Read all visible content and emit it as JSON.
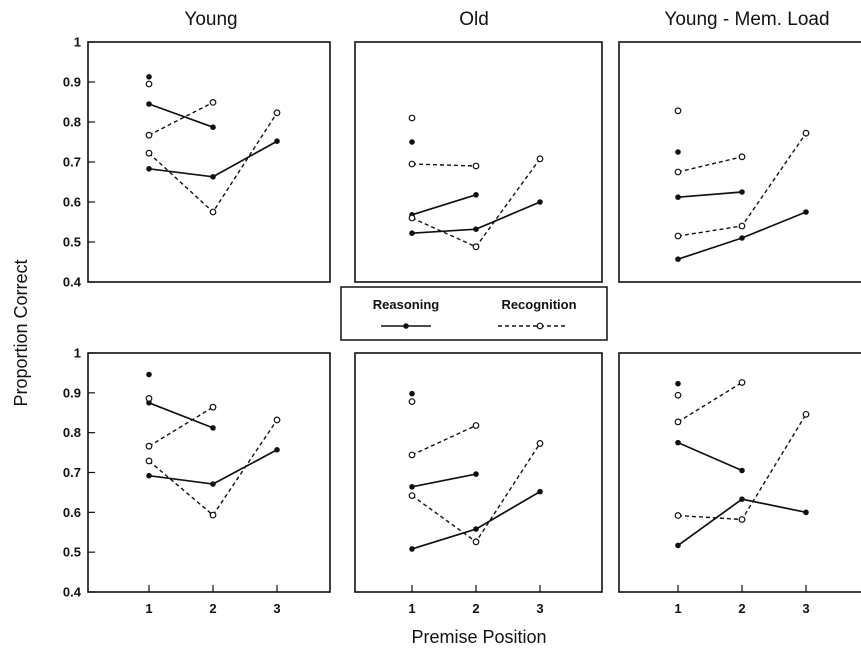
{
  "figure": {
    "ylabel": "Proportion Correct",
    "xlabel": "Premise Position",
    "column_titles": [
      "Young",
      "Old",
      "Young - Mem. Load"
    ],
    "legend": {
      "reasoning": "Reasoning",
      "recognition": "Recognition"
    }
  },
  "chart_data": [
    {
      "type": "line",
      "panel": "top-left",
      "title": "Young",
      "ylabel": "Proportion Correct",
      "xlabel": "Premise Position",
      "ylim": [
        0.4,
        1
      ],
      "yticks": [
        "0.4",
        "0.5",
        "0.6",
        "0.7",
        "0.8",
        "0.9",
        "1"
      ],
      "xticks": [],
      "series": [
        {
          "name": "Reasoning",
          "style": "solid",
          "marker": "filled",
          "points": [
            [
              1,
              0.845
            ],
            [
              2,
              0.787
            ]
          ]
        },
        {
          "name": "Reasoning",
          "style": "solid",
          "marker": "filled",
          "points": [
            [
              1,
              0.683
            ],
            [
              2,
              0.663
            ],
            [
              3,
              0.752
            ]
          ]
        },
        {
          "name": "Recognition",
          "style": "dashed",
          "marker": "open",
          "points": [
            [
              1,
              0.767
            ],
            [
              2,
              0.849
            ]
          ]
        },
        {
          "name": "Recognition",
          "style": "dashed",
          "marker": "open",
          "points": [
            [
              1,
              0.722
            ],
            [
              2,
              0.575
            ],
            [
              3,
              0.823
            ]
          ]
        },
        {
          "name": "Reasoning",
          "style": "none",
          "marker": "filled",
          "points": [
            [
              1,
              0.913
            ]
          ]
        },
        {
          "name": "Recognition",
          "style": "none",
          "marker": "open",
          "points": [
            [
              1,
              0.895
            ]
          ]
        }
      ]
    },
    {
      "type": "line",
      "panel": "top-middle",
      "title": "Old",
      "ylim": [
        0.4,
        1
      ],
      "yticks": [],
      "xticks": [],
      "series": [
        {
          "name": "Reasoning",
          "style": "solid",
          "marker": "filled",
          "points": [
            [
              1,
              0.568
            ],
            [
              2,
              0.618
            ]
          ]
        },
        {
          "name": "Reasoning",
          "style": "solid",
          "marker": "filled",
          "points": [
            [
              1,
              0.522
            ],
            [
              2,
              0.532
            ],
            [
              3,
              0.6
            ]
          ]
        },
        {
          "name": "Recognition",
          "style": "dashed",
          "marker": "open",
          "points": [
            [
              1,
              0.695
            ],
            [
              2,
              0.69
            ]
          ]
        },
        {
          "name": "Recognition",
          "style": "dashed",
          "marker": "open",
          "points": [
            [
              1,
              0.56
            ],
            [
              2,
              0.488
            ],
            [
              3,
              0.708
            ]
          ]
        },
        {
          "name": "Reasoning",
          "style": "none",
          "marker": "filled",
          "points": [
            [
              1,
              0.75
            ]
          ]
        },
        {
          "name": "Recognition",
          "style": "none",
          "marker": "open",
          "points": [
            [
              1,
              0.81
            ]
          ]
        }
      ]
    },
    {
      "type": "line",
      "panel": "top-right",
      "title": "Young - Mem. Load",
      "ylim": [
        0.4,
        1
      ],
      "yticks": [],
      "xticks": [],
      "series": [
        {
          "name": "Reasoning",
          "style": "solid",
          "marker": "filled",
          "points": [
            [
              1,
              0.612
            ],
            [
              2,
              0.625
            ]
          ]
        },
        {
          "name": "Reasoning",
          "style": "solid",
          "marker": "filled",
          "points": [
            [
              1,
              0.457
            ],
            [
              2,
              0.51
            ],
            [
              3,
              0.575
            ]
          ]
        },
        {
          "name": "Recognition",
          "style": "dashed",
          "marker": "open",
          "points": [
            [
              1,
              0.675
            ],
            [
              2,
              0.713
            ]
          ]
        },
        {
          "name": "Recognition",
          "style": "dashed",
          "marker": "open",
          "points": [
            [
              1,
              0.515
            ],
            [
              2,
              0.54
            ],
            [
              3,
              0.772
            ]
          ]
        },
        {
          "name": "Reasoning",
          "style": "none",
          "marker": "filled",
          "points": [
            [
              1,
              0.725
            ]
          ]
        },
        {
          "name": "Recognition",
          "style": "none",
          "marker": "open",
          "points": [
            [
              1,
              0.828
            ]
          ]
        }
      ]
    },
    {
      "type": "line",
      "panel": "bottom-left",
      "ylim": [
        0.4,
        1
      ],
      "yticks": [
        "0.4",
        "0.5",
        "0.6",
        "0.7",
        "0.8",
        "0.9",
        "1"
      ],
      "xticks": [
        "1",
        "2",
        "3"
      ],
      "series": [
        {
          "name": "Reasoning",
          "style": "solid",
          "marker": "filled",
          "points": [
            [
              1,
              0.875
            ],
            [
              2,
              0.812
            ]
          ]
        },
        {
          "name": "Reasoning",
          "style": "solid",
          "marker": "filled",
          "points": [
            [
              1,
              0.692
            ],
            [
              2,
              0.671
            ],
            [
              3,
              0.757
            ]
          ]
        },
        {
          "name": "Recognition",
          "style": "dashed",
          "marker": "open",
          "points": [
            [
              1,
              0.766
            ],
            [
              2,
              0.864
            ]
          ]
        },
        {
          "name": "Recognition",
          "style": "dashed",
          "marker": "open",
          "points": [
            [
              1,
              0.729
            ],
            [
              2,
              0.593
            ],
            [
              3,
              0.832
            ]
          ]
        },
        {
          "name": "Reasoning",
          "style": "none",
          "marker": "filled",
          "points": [
            [
              1,
              0.946
            ]
          ]
        },
        {
          "name": "Recognition",
          "style": "none",
          "marker": "open",
          "points": [
            [
              1,
              0.886
            ]
          ]
        }
      ]
    },
    {
      "type": "line",
      "panel": "bottom-middle",
      "ylim": [
        0.4,
        1
      ],
      "yticks": [],
      "xticks": [
        "1",
        "2",
        "3"
      ],
      "series": [
        {
          "name": "Reasoning",
          "style": "solid",
          "marker": "filled",
          "points": [
            [
              1,
              0.664
            ],
            [
              2,
              0.696
            ]
          ]
        },
        {
          "name": "Reasoning",
          "style": "solid",
          "marker": "filled",
          "points": [
            [
              1,
              0.508
            ],
            [
              2,
              0.558
            ],
            [
              3,
              0.652
            ]
          ]
        },
        {
          "name": "Recognition",
          "style": "dashed",
          "marker": "open",
          "points": [
            [
              1,
              0.744
            ],
            [
              2,
              0.818
            ]
          ]
        },
        {
          "name": "Recognition",
          "style": "dashed",
          "marker": "open",
          "points": [
            [
              1,
              0.642
            ],
            [
              2,
              0.526
            ],
            [
              3,
              0.773
            ]
          ]
        },
        {
          "name": "Reasoning",
          "style": "none",
          "marker": "filled",
          "points": [
            [
              1,
              0.898
            ]
          ]
        },
        {
          "name": "Recognition",
          "style": "none",
          "marker": "open",
          "points": [
            [
              1,
              0.878
            ]
          ]
        }
      ]
    },
    {
      "type": "line",
      "panel": "bottom-right",
      "ylim": [
        0.4,
        1
      ],
      "yticks": [],
      "xticks": [
        "1",
        "2",
        "3"
      ],
      "series": [
        {
          "name": "Reasoning",
          "style": "solid",
          "marker": "filled",
          "points": [
            [
              1,
              0.775
            ],
            [
              2,
              0.705
            ]
          ]
        },
        {
          "name": "Reasoning",
          "style": "solid",
          "marker": "filled",
          "points": [
            [
              1,
              0.517
            ],
            [
              2,
              0.633
            ],
            [
              3,
              0.6
            ]
          ]
        },
        {
          "name": "Recognition",
          "style": "dashed",
          "marker": "open",
          "points": [
            [
              1,
              0.827
            ],
            [
              2,
              0.926
            ]
          ]
        },
        {
          "name": "Recognition",
          "style": "dashed",
          "marker": "open",
          "points": [
            [
              1,
              0.592
            ],
            [
              2,
              0.582
            ],
            [
              3,
              0.846
            ]
          ]
        },
        {
          "name": "Reasoning",
          "style": "none",
          "marker": "filled",
          "points": [
            [
              1,
              0.923
            ]
          ]
        },
        {
          "name": "Recognition",
          "style": "none",
          "marker": "open",
          "points": [
            [
              1,
              0.894
            ]
          ]
        }
      ]
    }
  ]
}
